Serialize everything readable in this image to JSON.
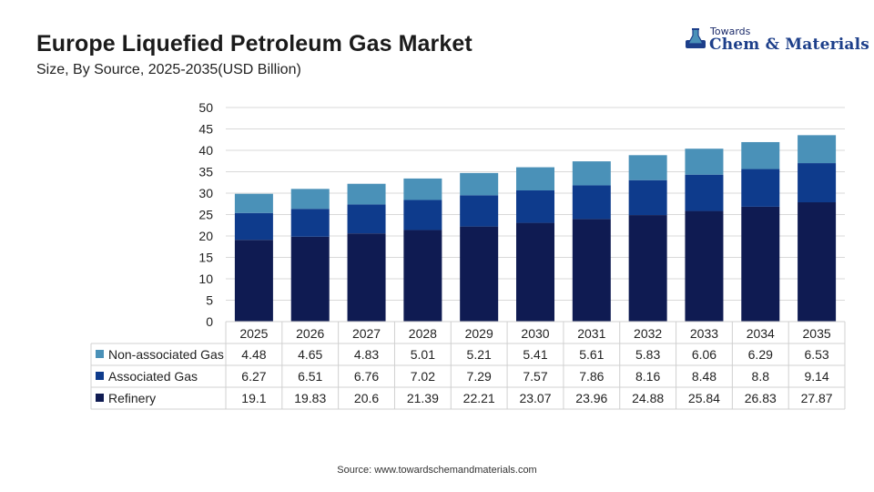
{
  "header": {
    "title": "Europe Liquefied Petroleum Gas Market",
    "subtitle": "Size, By Source, 2025-2035(USD Billion)"
  },
  "logo": {
    "small_text": "Towards",
    "main_text": "Chem & Materials",
    "icon": "flask-icon"
  },
  "footer": {
    "source": "Source: www.towardschemandmaterials.com"
  },
  "chart_data": {
    "type": "bar",
    "stacked": true,
    "categories": [
      "2025",
      "2026",
      "2027",
      "2028",
      "2029",
      "2030",
      "2031",
      "2032",
      "2033",
      "2034",
      "2035"
    ],
    "series": [
      {
        "name": "Refinery",
        "color": "#0f1b52",
        "values": [
          19.1,
          19.83,
          20.6,
          21.39,
          22.21,
          23.07,
          23.96,
          24.88,
          25.84,
          26.83,
          27.87
        ]
      },
      {
        "name": "Associated Gas",
        "color": "#0e3b8c",
        "values": [
          6.27,
          6.51,
          6.76,
          7.02,
          7.29,
          7.57,
          7.86,
          8.16,
          8.48,
          8.8,
          9.14
        ]
      },
      {
        "name": "Non-associated Gas",
        "color": "#4a91b8",
        "values": [
          4.48,
          4.65,
          4.83,
          5.01,
          5.21,
          5.41,
          5.61,
          5.83,
          6.06,
          6.29,
          6.53
        ]
      }
    ],
    "table_order": [
      "Non-associated Gas",
      "Associated Gas",
      "Refinery"
    ],
    "ylim": [
      0,
      50
    ],
    "yticks": [
      0,
      5,
      10,
      15,
      20,
      25,
      30,
      35,
      40,
      45,
      50
    ],
    "grid": true,
    "legend": "data-table"
  }
}
